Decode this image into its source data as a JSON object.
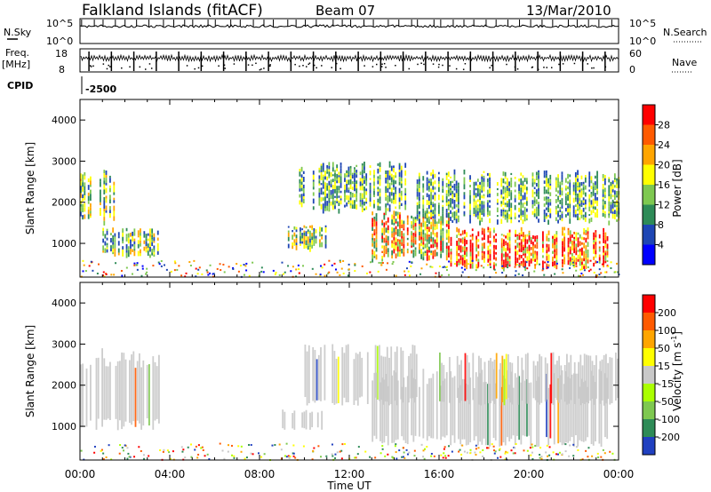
{
  "header": {
    "title": "Falkland Islands (fitACF)",
    "beam": "Beam 07",
    "date": "13/Mar/2010"
  },
  "strip_labels": {
    "nsky": "N.Sky",
    "nsky_ticks": [
      "10^5",
      "10^0"
    ],
    "nsearch": "N.Search",
    "nsearch_ticks": [
      "10^5",
      "10^0"
    ],
    "freq_top": "Freq.",
    "freq_unit": "[MHz]",
    "freq_ticks": [
      "18",
      "8"
    ],
    "nave": "Nave",
    "nave_ticks": [
      "60",
      "0"
    ],
    "cpid_label": "CPID",
    "cpid_value": "-2500"
  },
  "time_axis": {
    "label": "Time UT",
    "ticks": [
      "00:00",
      "04:00",
      "08:00",
      "12:00",
      "16:00",
      "20:00",
      "00:00"
    ]
  },
  "chart_data": [
    {
      "type": "heatmap",
      "name": "power-panel",
      "ylabel": "Slant Range [km]",
      "xlim_hours": [
        0,
        24
      ],
      "ylim_km": [
        180,
        4500
      ],
      "yticks": [
        "4000",
        "3000",
        "2000",
        "1000"
      ],
      "colorbar": {
        "label": "Power [dB]",
        "ticks": [
          "28",
          "24",
          "20",
          "16",
          "12",
          "8",
          "4"
        ],
        "colors": [
          "#0000ff",
          "#1e46b4",
          "#2e8b57",
          "#7ec850",
          "#ffff00",
          "#ffa500",
          "#ff5a00",
          "#ff0000"
        ]
      },
      "regions": [
        {
          "t0": 0.0,
          "t1": 1.5,
          "r0": 1500,
          "r1": 2800,
          "level": "mid"
        },
        {
          "t0": 1.0,
          "t1": 3.5,
          "r0": 700,
          "r1": 1400,
          "level": "mid"
        },
        {
          "t0": 9.0,
          "t1": 11.0,
          "r0": 900,
          "r1": 1450,
          "level": "mid"
        },
        {
          "t0": 9.5,
          "t1": 14.5,
          "r0": 1800,
          "r1": 3000,
          "level": "low"
        },
        {
          "t0": 13.0,
          "t1": 16.5,
          "r0": 600,
          "r1": 1800,
          "level": "high"
        },
        {
          "t0": 16.5,
          "t1": 23.5,
          "r0": 400,
          "r1": 1400,
          "level": "max"
        },
        {
          "t0": 15.0,
          "t1": 24.0,
          "r0": 1500,
          "r1": 2800,
          "level": "low"
        }
      ]
    },
    {
      "type": "heatmap",
      "name": "velocity-panel",
      "ylabel": "Slant Range [km]",
      "xlim_hours": [
        0,
        24
      ],
      "ylim_km": [
        180,
        4500
      ],
      "yticks": [
        "4000",
        "3000",
        "2000",
        "1000"
      ],
      "colorbar": {
        "label": "Velocity [m s",
        "label_sup": "-1",
        "label_end": "]",
        "ticks": [
          "200",
          "100",
          "50",
          "15",
          "-15",
          "-50",
          "-100",
          "-200"
        ],
        "colors": [
          "#2040c0",
          "#2e8b57",
          "#7ec850",
          "#aaff00",
          "#c8c8c8",
          "#ffff00",
          "#ffa500",
          "#ff5a00",
          "#ff0000"
        ]
      },
      "regions": [
        {
          "t0": 0.0,
          "t1": 3.5,
          "r0": 900,
          "r1": 2900,
          "level": "ground"
        },
        {
          "t0": 9.0,
          "t1": 11.0,
          "r0": 900,
          "r1": 1450,
          "level": "ground"
        },
        {
          "t0": 10.0,
          "t1": 15.0,
          "r0": 1500,
          "r1": 3000,
          "level": "ground"
        },
        {
          "t0": 13.0,
          "t1": 23.5,
          "r0": 500,
          "r1": 2400,
          "level": "ground"
        },
        {
          "t0": 16.0,
          "t1": 24.0,
          "r0": 1500,
          "r1": 2800,
          "level": "ground"
        }
      ]
    }
  ]
}
